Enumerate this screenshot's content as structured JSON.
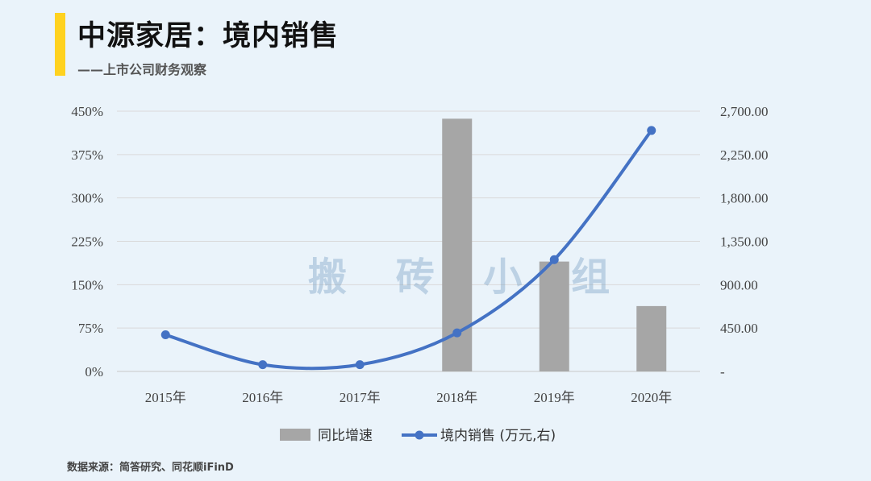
{
  "header": {
    "title": "中源家居：境内销售",
    "subtitle": "——上市公司财务观察"
  },
  "watermark": "搬 砖 小 组",
  "source": "数据来源：简答研究、同花顺iFinD",
  "colors": {
    "accent": "#ffd21f",
    "bar": "#a6a6a6",
    "line": "#4472c4",
    "background": "#eaf3fa"
  },
  "chart_data": {
    "type": "bar+line",
    "categories": [
      "2015年",
      "2016年",
      "2017年",
      "2018年",
      "2019年",
      "2020年"
    ],
    "series": [
      {
        "name": "同比增速",
        "type": "bar",
        "axis": "left",
        "values": [
          null,
          null,
          null,
          4.37,
          1.9,
          1.13
        ]
      },
      {
        "name": "境内销售 (万元,右)",
        "type": "line",
        "axis": "right",
        "values": [
          380,
          70,
          70,
          400,
          1160,
          2500
        ]
      }
    ],
    "y_left": {
      "ticks": [
        "0%",
        "75%",
        "150%",
        "225%",
        "300%",
        "375%",
        "450%"
      ],
      "range": [
        0,
        4.5
      ]
    },
    "y_right": {
      "ticks": [
        "-",
        "450.00",
        "900.00",
        "1,350.00",
        "1,800.00",
        "2,250.00",
        "2,700.00"
      ],
      "range": [
        0,
        2700
      ]
    },
    "grid": true,
    "legend_position": "bottom"
  }
}
